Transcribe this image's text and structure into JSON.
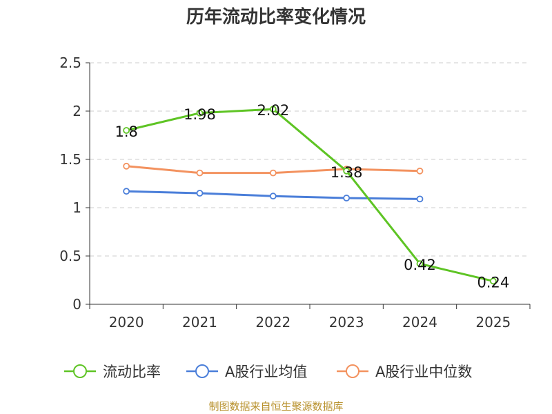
{
  "chart_data": {
    "type": "line",
    "title": "历年流动比率变化情况",
    "categories": [
      "2020",
      "2021",
      "2022",
      "2023",
      "2024",
      "2025"
    ],
    "y_ticks": [
      "0",
      "0.5",
      "1",
      "1.5",
      "2",
      "2.5"
    ],
    "ylim": [
      0,
      2.5
    ],
    "grid": true,
    "legend_position": "bottom",
    "series": [
      {
        "name": "流动比率",
        "color": "#5ec424",
        "values": [
          1.8,
          1.98,
          2.02,
          1.38,
          0.42,
          0.24
        ],
        "labels": [
          "1.8",
          "1.98",
          "2.02",
          "1.38",
          "0.42",
          "0.24"
        ]
      },
      {
        "name": "A股行业均值",
        "color": "#4a7ed9",
        "values": [
          1.17,
          1.15,
          1.12,
          1.1,
          1.09,
          null
        ]
      },
      {
        "name": "A股行业中位数",
        "color": "#f3925f",
        "values": [
          1.43,
          1.36,
          1.36,
          1.4,
          1.38,
          null
        ]
      }
    ]
  },
  "source": "制图数据来自恒生聚源数据库"
}
